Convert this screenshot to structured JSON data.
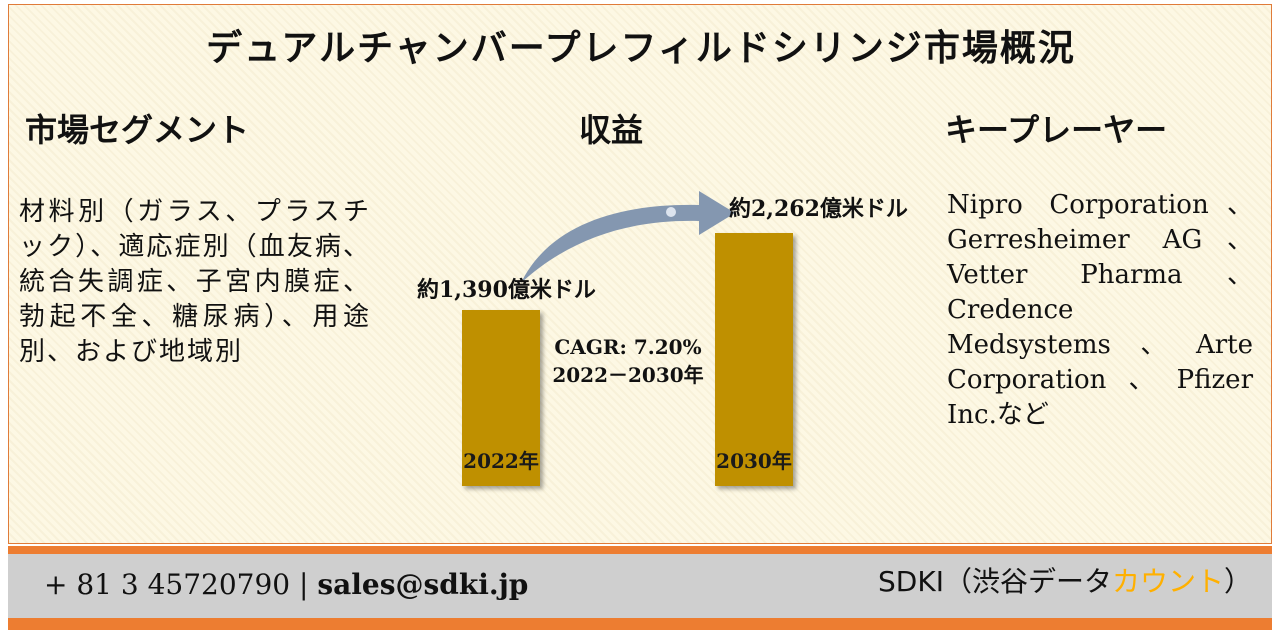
{
  "title": "デュアルチャンバープレフィルドシリンジ市場概況",
  "segments": {
    "heading": "市場セグメント",
    "text": "材料別（ガラス、プラスチック）、適応症別（血友病、統合失調症、子宮内膜症、勃起不全、糖尿病）、用途別、および地域別"
  },
  "revenue": {
    "heading": "収益",
    "bars": [
      {
        "year_label": "2022年",
        "value_label": "約1,390億米ドル",
        "value": 1390
      },
      {
        "year_label": "2030年",
        "value_label": "約2,262億米ドル",
        "value": 2262
      }
    ],
    "cagr_line1": "CAGR: 7.20%",
    "cagr_line2": "2022－2030年",
    "colors": {
      "bar": "#bf9000",
      "arrow": "#8497b0"
    }
  },
  "players": {
    "heading": "キープレーヤー",
    "text": "Nipro Corporation、Gerresheimer AG、Vetter Pharma、Credence Medsystems、Arte Corporation、Pfizer Inc.など"
  },
  "footer": {
    "phone": "+ 81 3 45720790",
    "separator": "|",
    "email": "sales@sdki.jp",
    "brand_main": "SDKI（渋谷データ",
    "brand_accent": "カウント",
    "brand_close": "）",
    "colors": {
      "stripe": "#ed7d31",
      "band": "#cfcfcf",
      "accent": "#ffb000"
    }
  }
}
